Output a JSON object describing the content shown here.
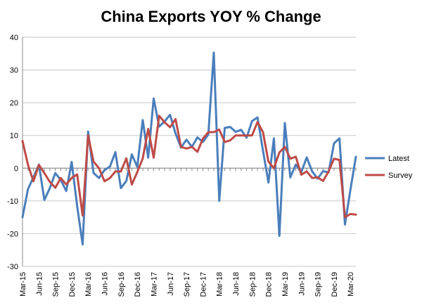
{
  "chart_data": {
    "type": "line",
    "title": "China Exports YOY % Change",
    "xlabel": "",
    "ylabel": "",
    "ylim": [
      -30,
      40
    ],
    "yticks": [
      -30,
      -20,
      -10,
      0,
      10,
      20,
      30,
      40
    ],
    "grid": true,
    "legend_position": "right",
    "x": [
      "Mar-15",
      "Apr-15",
      "May-15",
      "Jun-15",
      "Jul-15",
      "Aug-15",
      "Sep-15",
      "Oct-15",
      "Nov-15",
      "Dec-15",
      "Jan-16",
      "Feb-16",
      "Mar-16",
      "Apr-16",
      "May-16",
      "Jun-16",
      "Jul-16",
      "Aug-16",
      "Sep-16",
      "Oct-16",
      "Nov-16",
      "Dec-16",
      "Jan-17",
      "Feb-17",
      "Mar-17",
      "Apr-17",
      "May-17",
      "Jun-17",
      "Jul-17",
      "Aug-17",
      "Sep-17",
      "Oct-17",
      "Nov-17",
      "Dec-17",
      "Jan-18",
      "Feb-18",
      "Mar-18",
      "Apr-18",
      "May-18",
      "Jun-18",
      "Jul-18",
      "Aug-18",
      "Sep-18",
      "Oct-18",
      "Nov-18",
      "Dec-18",
      "Jan-19",
      "Feb-19",
      "Mar-19",
      "Apr-19",
      "May-19",
      "Jun-19",
      "Jul-19",
      "Aug-19",
      "Sep-19",
      "Oct-19",
      "Nov-19",
      "Dec-19",
      "Jan-20",
      "Feb-20",
      "Mar-20",
      "Apr-20"
    ],
    "x_tick_labels": [
      "Mar-15",
      "Jun-15",
      "Sep-15",
      "Dec-15",
      "Mar-16",
      "Jun-16",
      "Sep-16",
      "Dec-16",
      "Mar-17",
      "Jun-17",
      "Sep-17",
      "Dec-17",
      "Mar-18",
      "Jun-18",
      "Sep-18",
      "Dec-18",
      "Mar-19",
      "Jun-19",
      "Sep-19",
      "Dec-19",
      "Mar-20"
    ],
    "series": [
      {
        "name": "Latest",
        "color": "#4a7ebb",
        "values": [
          -15,
          -6.4,
          -2.8,
          1.1,
          -9.7,
          -6.1,
          -1.5,
          -3.6,
          -7,
          1.9,
          -11.6,
          -23.3,
          11.2,
          -1.5,
          -3,
          -0.6,
          0.5,
          4.9,
          -6.1,
          -3.9,
          4.2,
          0.4,
          14.7,
          3.2,
          21.3,
          12.7,
          14.3,
          16.3,
          10.6,
          6.3,
          8.7,
          6.5,
          9.4,
          8,
          10.3,
          35.3,
          -10,
          12.3,
          12.6,
          11.1,
          11.7,
          9.3,
          14.4,
          15.5,
          5.4,
          -4.4,
          9.1,
          -20.7,
          13.8,
          -2.8,
          1.1,
          -1.3,
          3.3,
          -1,
          -3.2,
          -0.9,
          -1.3,
          7.6,
          9.1,
          -17.2,
          -6.6,
          3.5
        ]
      },
      {
        "name": "Survey",
        "color": "#be4b48",
        "values": [
          8.3,
          1,
          -4,
          1,
          -1.5,
          -4.2,
          -6,
          -3,
          -5,
          -3,
          -1.9,
          -14.5,
          10,
          2,
          0,
          -4,
          -3,
          -1,
          -1,
          3,
          -5,
          -1.2,
          3,
          12,
          3.2,
          16,
          14,
          12.5,
          15,
          6.5,
          6,
          6.5,
          5,
          9,
          11,
          11,
          11.8,
          8,
          8.5,
          10,
          10,
          10,
          10,
          14.1,
          11,
          2,
          0,
          4.8,
          6.5,
          2.9,
          3.5,
          -2,
          -1,
          -3,
          -2.8,
          -3.9,
          -1,
          2.9,
          2.5,
          -15,
          -14,
          -14.2
        ]
      }
    ]
  }
}
